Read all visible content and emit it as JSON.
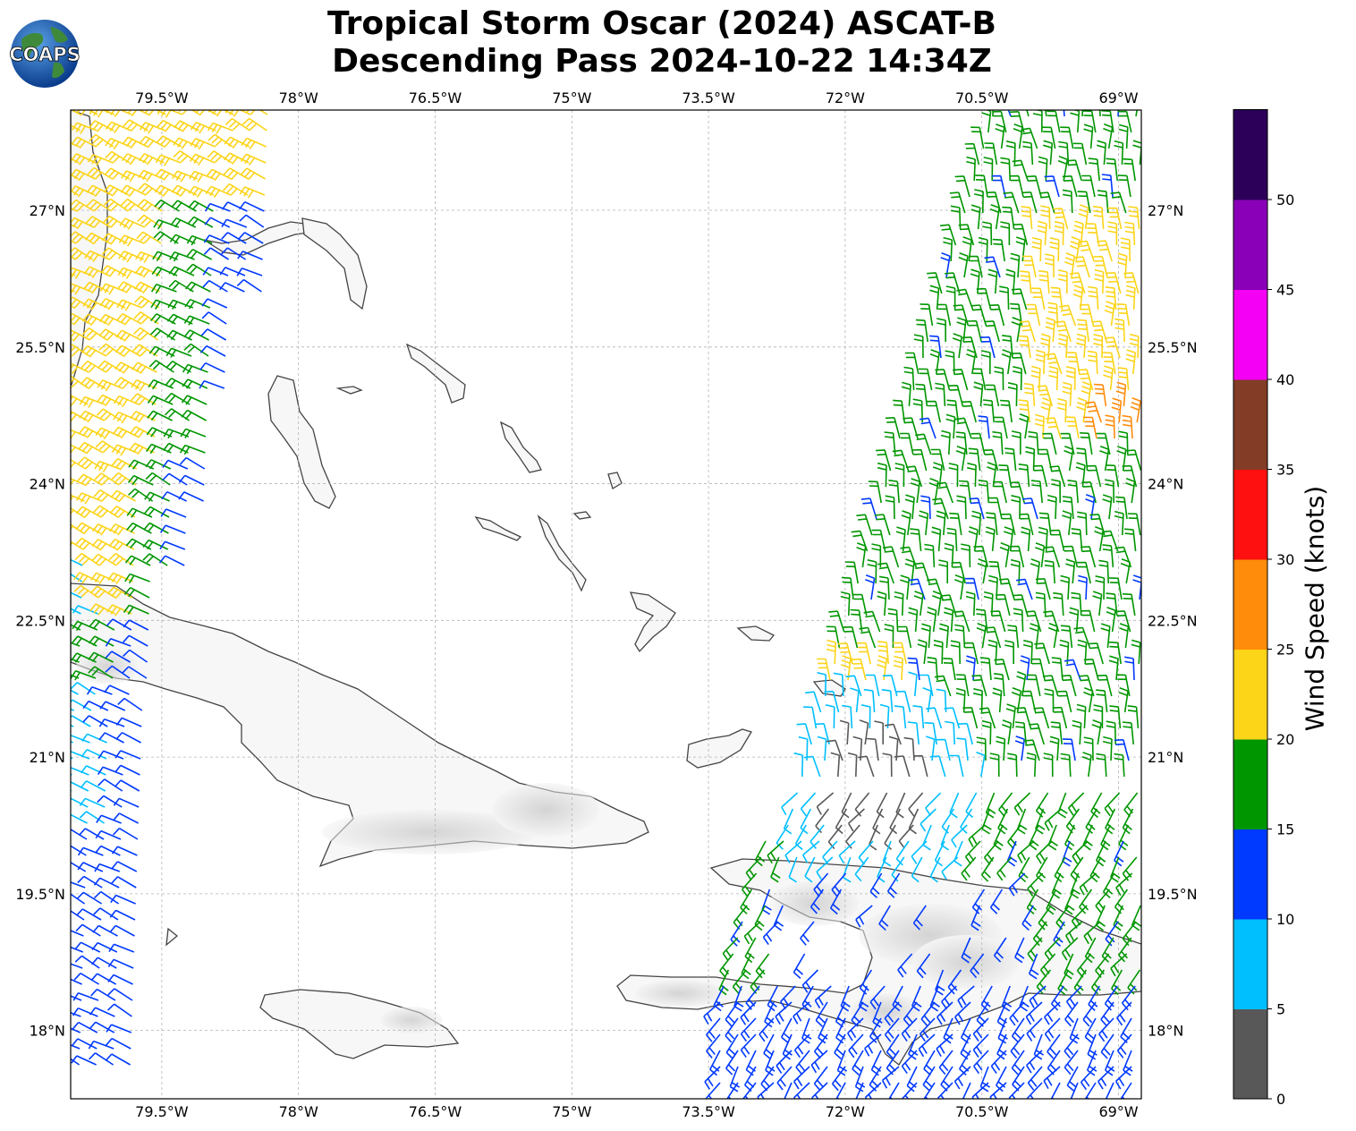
{
  "title": {
    "line1": "Tropical Storm Oscar (2024) ASCAT-B",
    "line2": "Descending Pass 2024-10-22 14:34Z"
  },
  "logo": {
    "text": "COAPS",
    "icon": "globe-logo-icon"
  },
  "map": {
    "lon_range": [
      -80.5,
      -68.75
    ],
    "lat_range": [
      17.25,
      28.1
    ],
    "lon_ticks": [
      "79.5°W",
      "78°W",
      "76.5°W",
      "75°W",
      "73.5°W",
      "72°W",
      "70.5°W",
      "69°W"
    ],
    "lat_ticks": [
      "27°N",
      "25.5°N",
      "24°N",
      "22.5°N",
      "21°N",
      "19.5°N",
      "18°N"
    ],
    "gridlines": true,
    "coastline_color": "#444444",
    "terrain": "grayscale shaded relief",
    "places": [
      "Florida",
      "Bahamas",
      "Cuba",
      "Jamaica",
      "Hispaniola",
      "Turks and Caicos"
    ]
  },
  "colorbar": {
    "title": "Wind Speed (knots)",
    "bins": [
      {
        "min": 0,
        "max": 5,
        "color": "#585858"
      },
      {
        "min": 5,
        "max": 10,
        "color": "#00bfff"
      },
      {
        "min": 10,
        "max": 15,
        "color": "#0039ff"
      },
      {
        "min": 15,
        "max": 20,
        "color": "#009600"
      },
      {
        "min": 20,
        "max": 25,
        "color": "#fcd418"
      },
      {
        "min": 25,
        "max": 30,
        "color": "#ff8c0a"
      },
      {
        "min": 30,
        "max": 35,
        "color": "#ff1010"
      },
      {
        "min": 35,
        "max": 40,
        "color": "#833c26"
      },
      {
        "min": 40,
        "max": 45,
        "color": "#f400f4"
      },
      {
        "min": 45,
        "max": 50,
        "color": "#8a00b8"
      },
      {
        "min": 50,
        "max": 55,
        "color": "#2c0059"
      }
    ],
    "tick_labels": [
      "0",
      "5",
      "10",
      "15",
      "20",
      "25",
      "30",
      "35",
      "40",
      "45",
      "50"
    ]
  }
}
